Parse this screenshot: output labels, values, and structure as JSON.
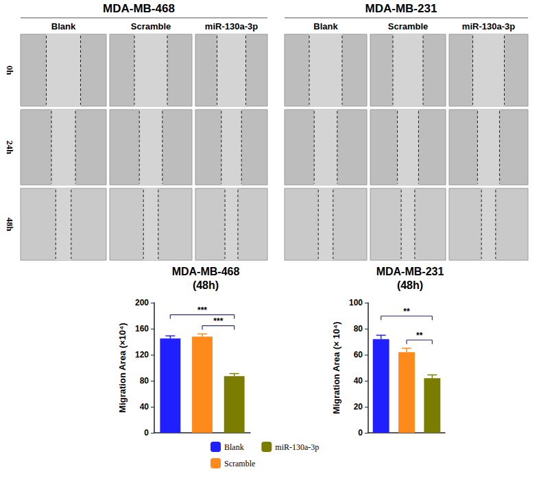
{
  "panels": {
    "rows": [
      "0h",
      "24h",
      "48h"
    ],
    "groups": [
      {
        "title": "MDA-MB-468",
        "columns": [
          "Blank",
          "Scramble",
          "miR-130a-3p"
        ]
      },
      {
        "title": "MDA-MB-231",
        "columns": [
          "Blank",
          "Scramble",
          "miR-130a-3p"
        ]
      }
    ]
  },
  "chart_data": [
    {
      "type": "bar",
      "title": "MDA-MB-468",
      "subtitle": "(48h)",
      "y_label": "Migration Area (×10⁴)",
      "categories": [
        "Blank",
        "Scramble",
        "miR-130a-3p"
      ],
      "values": [
        145,
        148,
        87
      ],
      "errors": [
        4,
        4,
        4
      ],
      "colors": [
        "#1f1fff",
        "#ff8a1c",
        "#7b7d00"
      ],
      "ylim": [
        0,
        200
      ],
      "yticks": [
        0,
        40,
        80,
        120,
        160,
        200
      ],
      "tick_labels": "y",
      "legend": "bottom right",
      "annotations": [
        {
          "between": [
            "Blank",
            "miR-130a-3p"
          ],
          "label": "***"
        },
        {
          "between": [
            "Scramble",
            "miR-130a-3p"
          ],
          "label": "***"
        }
      ]
    },
    {
      "type": "bar",
      "title": "MDA-MB-231",
      "subtitle": "(48h)",
      "y_label": "Migration Area (× 10⁴)",
      "categories": [
        "Blank",
        "Scramble",
        "miR-130a-3p"
      ],
      "values": [
        72,
        62,
        42
      ],
      "errors": [
        3,
        3,
        2.5
      ],
      "colors": [
        "#1f1fff",
        "#ff8a1c",
        "#7b7d00"
      ],
      "ylim": [
        0,
        100
      ],
      "yticks": [
        0,
        20,
        40,
        60,
        80,
        100
      ],
      "tick_labels": "y",
      "annotations": [
        {
          "between": [
            "Blank",
            "miR-130a-3p"
          ],
          "label": "**"
        },
        {
          "between": [
            "Scramble",
            "miR-130a-3p"
          ],
          "label": "**"
        }
      ]
    }
  ]
}
